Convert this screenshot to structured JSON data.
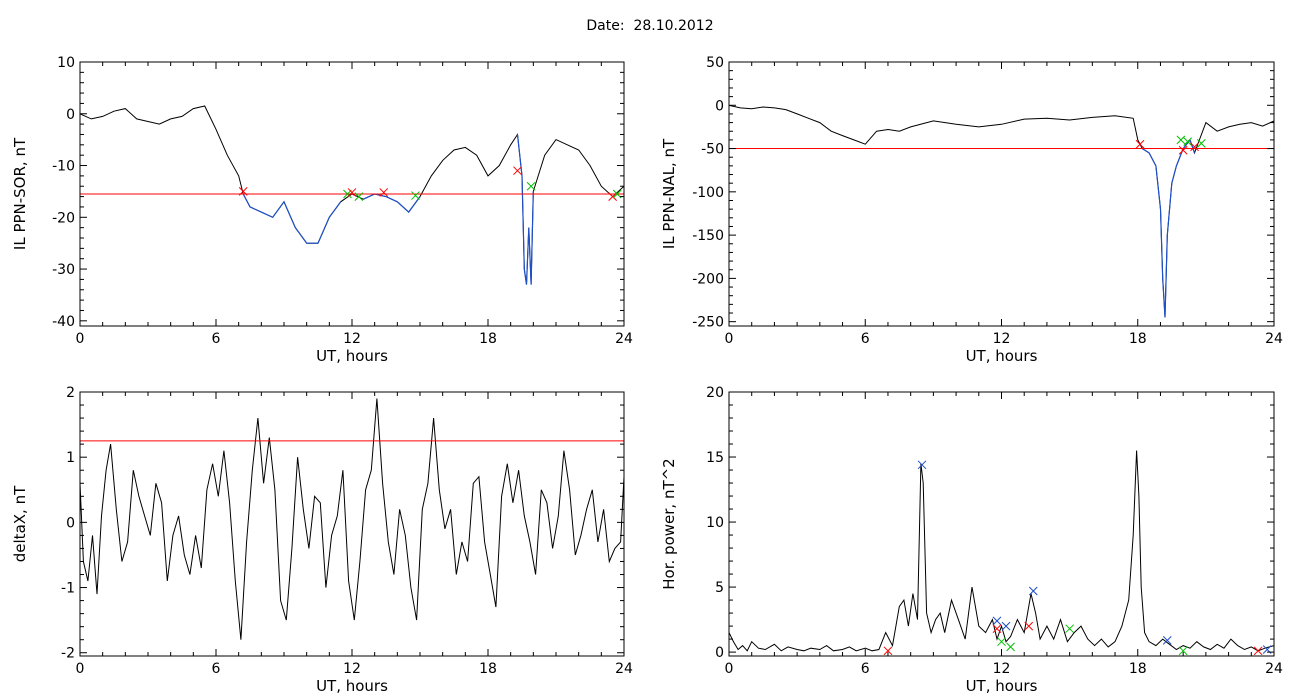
{
  "figure": {
    "date_label": "Date:  28.10.2012"
  },
  "colors": {
    "trace": "#000000",
    "threshold": "#ff0000",
    "highlight": "#1e50c8",
    "marker_red": "#ff0000",
    "marker_green": "#00c000",
    "marker_blue": "#1e50c8",
    "axis": "#000000"
  },
  "chart_data": [
    {
      "type": "line",
      "xlabel": "UT, hours",
      "ylabel": "IL PPN-SOR, nT",
      "xlim": [
        0,
        24
      ],
      "ylim": [
        -41,
        10
      ],
      "xticks": [
        0,
        6,
        12,
        18,
        24
      ],
      "yticks": [
        10,
        0,
        -10,
        -20,
        -30,
        -40
      ],
      "series": [
        {
          "x": [
            0,
            0.5,
            1,
            1.5,
            2,
            2.5,
            3,
            3.5,
            4,
            4.5,
            5,
            5.5,
            6,
            6.5,
            7,
            7.2,
            7.5,
            8,
            8.5,
            9,
            9.5,
            10,
            10.5,
            11,
            11.5,
            12,
            12.5,
            13,
            13.5,
            14,
            14.5,
            15,
            15.5,
            16,
            16.5,
            17,
            17.5,
            18,
            18.5,
            19,
            19.3,
            19.5,
            19.6,
            19.7,
            19.8,
            19.9,
            20,
            20.5,
            21,
            21.5,
            22,
            22.5,
            23,
            23.5,
            24
          ],
          "y": [
            0,
            -1,
            -0.5,
            0.5,
            1,
            -1,
            -1.5,
            -2,
            -1,
            -0.5,
            1,
            1.5,
            -3,
            -8,
            -12,
            -15.5,
            -18,
            -19,
            -20,
            -17,
            -22,
            -25,
            -25,
            -20,
            -17,
            -15.5,
            -16.5,
            -15.5,
            -16,
            -17,
            -19,
            -16,
            -12,
            -9,
            -7,
            -6.5,
            -8,
            -12,
            -10,
            -6,
            -4,
            -12,
            -30,
            -33,
            -22,
            -33,
            -15,
            -8,
            -5,
            -6,
            -7,
            -10,
            -14,
            -16,
            -14
          ]
        }
      ],
      "threshold": -15.5,
      "highlight_x_ranges": [
        [
          7.2,
          11.7
        ],
        [
          12.5,
          15
        ],
        [
          19.3,
          20.1
        ]
      ],
      "markers": [
        {
          "x": 7.2,
          "y": -15,
          "color": "red"
        },
        {
          "x": 11.8,
          "y": -15.5,
          "color": "green"
        },
        {
          "x": 12.0,
          "y": -15.2,
          "color": "red"
        },
        {
          "x": 12.3,
          "y": -16,
          "color": "green"
        },
        {
          "x": 13.4,
          "y": -15.2,
          "color": "red"
        },
        {
          "x": 14.8,
          "y": -15.8,
          "color": "green"
        },
        {
          "x": 19.3,
          "y": -11,
          "color": "red"
        },
        {
          "x": 19.9,
          "y": -14,
          "color": "green"
        },
        {
          "x": 23.5,
          "y": -16,
          "color": "red"
        },
        {
          "x": 23.7,
          "y": -15.5,
          "color": "green"
        }
      ]
    },
    {
      "type": "line",
      "xlabel": "UT, hours",
      "ylabel": "IL PPN-NAL, nT",
      "xlim": [
        0,
        24
      ],
      "ylim": [
        -255,
        50
      ],
      "xticks": [
        0,
        6,
        12,
        18,
        24
      ],
      "yticks": [
        50,
        0,
        -50,
        -100,
        -150,
        -200,
        -250
      ],
      "series": [
        {
          "x": [
            0,
            0.5,
            1,
            1.5,
            2,
            2.5,
            3,
            3.5,
            4,
            4.5,
            5,
            5.5,
            6,
            6.5,
            7,
            7.5,
            8,
            9,
            10,
            11,
            12,
            13,
            14,
            15,
            16,
            17,
            17.8,
            18,
            18.2,
            18.5,
            18.8,
            19,
            19.1,
            19.2,
            19.3,
            19.5,
            19.7,
            20,
            20.3,
            20.5,
            21,
            21.5,
            22,
            22.5,
            23,
            23.5,
            24
          ],
          "y": [
            0,
            -3,
            -4,
            -2,
            -3,
            -5,
            -10,
            -15,
            -20,
            -30,
            -35,
            -40,
            -45,
            -30,
            -28,
            -30,
            -25,
            -18,
            -22,
            -25,
            -22,
            -16,
            -15,
            -17,
            -14,
            -12,
            -15,
            -40,
            -50,
            -55,
            -70,
            -120,
            -200,
            -245,
            -150,
            -90,
            -70,
            -50,
            -40,
            -55,
            -20,
            -30,
            -25,
            -22,
            -20,
            -24,
            -18
          ]
        }
      ],
      "threshold": -50,
      "highlight_x_ranges": [
        [
          18.2,
          20.7
        ]
      ],
      "markers": [
        {
          "x": 18.1,
          "y": -45,
          "color": "red"
        },
        {
          "x": 19.9,
          "y": -40,
          "color": "green"
        },
        {
          "x": 20.0,
          "y": -52,
          "color": "red"
        },
        {
          "x": 20.2,
          "y": -42,
          "color": "green"
        },
        {
          "x": 20.5,
          "y": -48,
          "color": "red"
        },
        {
          "x": 20.8,
          "y": -44,
          "color": "green"
        }
      ]
    },
    {
      "type": "line",
      "xlabel": "UT, hours",
      "ylabel": "deltaX, nT",
      "xlim": [
        0,
        24
      ],
      "ylim": [
        -2.05,
        2
      ],
      "xticks": [
        0,
        6,
        12,
        18,
        24
      ],
      "yticks": [
        2,
        1,
        0,
        -1,
        -2
      ],
      "series": [
        {
          "x": [
            0,
            0.15,
            0.35,
            0.55,
            0.75,
            0.95,
            1.15,
            1.35,
            1.6,
            1.85,
            2.1,
            2.35,
            2.6,
            2.85,
            3.1,
            3.35,
            3.6,
            3.85,
            4.1,
            4.35,
            4.6,
            4.85,
            5.1,
            5.35,
            5.6,
            5.85,
            6.1,
            6.35,
            6.6,
            6.85,
            7.1,
            7.35,
            7.6,
            7.85,
            8.1,
            8.35,
            8.6,
            8.85,
            9.1,
            9.35,
            9.6,
            9.85,
            10.1,
            10.35,
            10.6,
            10.85,
            11.1,
            11.35,
            11.6,
            11.85,
            12.1,
            12.35,
            12.6,
            12.85,
            13.1,
            13.35,
            13.6,
            13.85,
            14.1,
            14.35,
            14.6,
            14.85,
            15.1,
            15.35,
            15.6,
            15.85,
            16.1,
            16.35,
            16.6,
            16.85,
            17.1,
            17.35,
            17.6,
            17.85,
            18.1,
            18.35,
            18.6,
            18.85,
            19.1,
            19.35,
            19.6,
            19.85,
            20.1,
            20.35,
            20.6,
            20.85,
            21.1,
            21.35,
            21.6,
            21.85,
            22.1,
            22.35,
            22.6,
            22.85,
            23.1,
            23.35,
            23.6,
            23.85,
            24
          ],
          "y": [
            0.6,
            -0.6,
            -0.9,
            -0.2,
            -1.1,
            0.1,
            0.8,
            1.2,
            0.2,
            -0.6,
            -0.3,
            0.8,
            0.4,
            0.1,
            -0.2,
            0.6,
            0.3,
            -0.9,
            -0.2,
            0.1,
            -0.5,
            -0.8,
            -0.2,
            -0.7,
            0.5,
            0.9,
            0.4,
            1.1,
            0.3,
            -0.9,
            -1.8,
            -0.3,
            0.8,
            1.6,
            0.6,
            1.3,
            0.5,
            -1.2,
            -1.5,
            -0.4,
            1.0,
            0.2,
            -0.4,
            0.4,
            0.3,
            -1.0,
            -0.2,
            0.1,
            0.8,
            -0.9,
            -1.5,
            -0.6,
            0.5,
            0.8,
            1.9,
            0.6,
            -0.3,
            -0.8,
            0.2,
            -0.2,
            -1.0,
            -1.5,
            0.2,
            0.6,
            1.6,
            0.5,
            -0.1,
            0.2,
            -0.8,
            -0.3,
            -0.6,
            0.6,
            0.7,
            -0.3,
            -0.8,
            -1.3,
            0.4,
            0.9,
            0.3,
            0.8,
            0.1,
            -0.3,
            -0.8,
            0.5,
            0.3,
            -0.4,
            0.1,
            1.1,
            0.5,
            -0.5,
            -0.2,
            0.2,
            0.5,
            -0.3,
            0.2,
            -0.6,
            -0.4,
            -0.3,
            0.7
          ]
        }
      ],
      "threshold": 1.25,
      "highlight_x_ranges": [],
      "markers": []
    },
    {
      "type": "line",
      "xlabel": "UT, hours",
      "ylabel": "Hor. power, nT^2",
      "xlim": [
        0,
        24
      ],
      "ylim": [
        -0.3,
        20
      ],
      "xticks": [
        0,
        6,
        12,
        18,
        24
      ],
      "yticks": [
        20,
        15,
        10,
        5,
        0
      ],
      "series": [
        {
          "x": [
            0,
            0.2,
            0.4,
            0.6,
            0.8,
            1,
            1.3,
            1.6,
            2,
            2.3,
            2.6,
            3,
            3.3,
            3.6,
            4,
            4.3,
            4.6,
            5,
            5.3,
            5.6,
            6,
            6.3,
            6.6,
            6.9,
            7.2,
            7.5,
            7.7,
            7.9,
            8.1,
            8.3,
            8.45,
            8.55,
            8.7,
            8.9,
            9.1,
            9.3,
            9.5,
            9.8,
            10.1,
            10.4,
            10.7,
            11,
            11.3,
            11.6,
            11.8,
            12,
            12.2,
            12.4,
            12.7,
            13,
            13.3,
            13.5,
            13.7,
            14,
            14.3,
            14.6,
            14.9,
            15.2,
            15.5,
            15.8,
            16.1,
            16.4,
            16.7,
            17,
            17.3,
            17.6,
            17.8,
            17.95,
            18.05,
            18.15,
            18.3,
            18.5,
            18.8,
            19.1,
            19.4,
            19.7,
            20,
            20.3,
            20.6,
            20.9,
            21.2,
            21.5,
            21.8,
            22.1,
            22.4,
            22.7,
            23,
            23.3,
            23.6,
            24
          ],
          "y": [
            1.5,
            0.8,
            0.2,
            0.5,
            0.1,
            0.8,
            0.3,
            0.2,
            0.6,
            0.1,
            0.4,
            0.2,
            0.1,
            0.3,
            0.2,
            0.5,
            0.1,
            0.2,
            0.4,
            0.1,
            0.3,
            0.1,
            0.2,
            1.5,
            0.5,
            3.5,
            4.0,
            2.0,
            4.5,
            2.5,
            14.5,
            13.0,
            3.0,
            1.5,
            2.5,
            3.0,
            1.5,
            4.0,
            2.5,
            1.0,
            5.0,
            2.0,
            1.5,
            2.5,
            1.0,
            2.0,
            0.8,
            1.2,
            2.5,
            1.5,
            4.5,
            3.0,
            1.0,
            2.0,
            1.0,
            2.5,
            0.8,
            1.5,
            2.0,
            1.0,
            0.5,
            1.0,
            0.4,
            0.8,
            2.0,
            4.0,
            9.0,
            15.5,
            12.0,
            5.0,
            1.5,
            0.8,
            0.5,
            1.0,
            0.6,
            0.2,
            0.5,
            0.3,
            0.8,
            0.4,
            0.2,
            0.6,
            0.3,
            1.0,
            0.5,
            0.2,
            0.4,
            0.1,
            0.3,
            0.5
          ]
        }
      ],
      "threshold": null,
      "highlight_x_ranges": [],
      "markers": [
        {
          "x": 7.0,
          "y": 0.1,
          "color": "red"
        },
        {
          "x": 8.5,
          "y": 14.4,
          "color": "blue"
        },
        {
          "x": 11.8,
          "y": 2.4,
          "color": "blue"
        },
        {
          "x": 11.8,
          "y": 1.8,
          "color": "red"
        },
        {
          "x": 12.0,
          "y": 0.8,
          "color": "green"
        },
        {
          "x": 12.2,
          "y": 2.0,
          "color": "blue"
        },
        {
          "x": 12.4,
          "y": 0.4,
          "color": "green"
        },
        {
          "x": 13.4,
          "y": 4.7,
          "color": "blue"
        },
        {
          "x": 13.2,
          "y": 2.0,
          "color": "red"
        },
        {
          "x": 15.0,
          "y": 1.8,
          "color": "green"
        },
        {
          "x": 19.3,
          "y": 0.9,
          "color": "blue"
        },
        {
          "x": 20.0,
          "y": 0.1,
          "color": "green"
        },
        {
          "x": 23.3,
          "y": 0.1,
          "color": "red"
        },
        {
          "x": 23.7,
          "y": 0.2,
          "color": "blue"
        }
      ]
    }
  ]
}
